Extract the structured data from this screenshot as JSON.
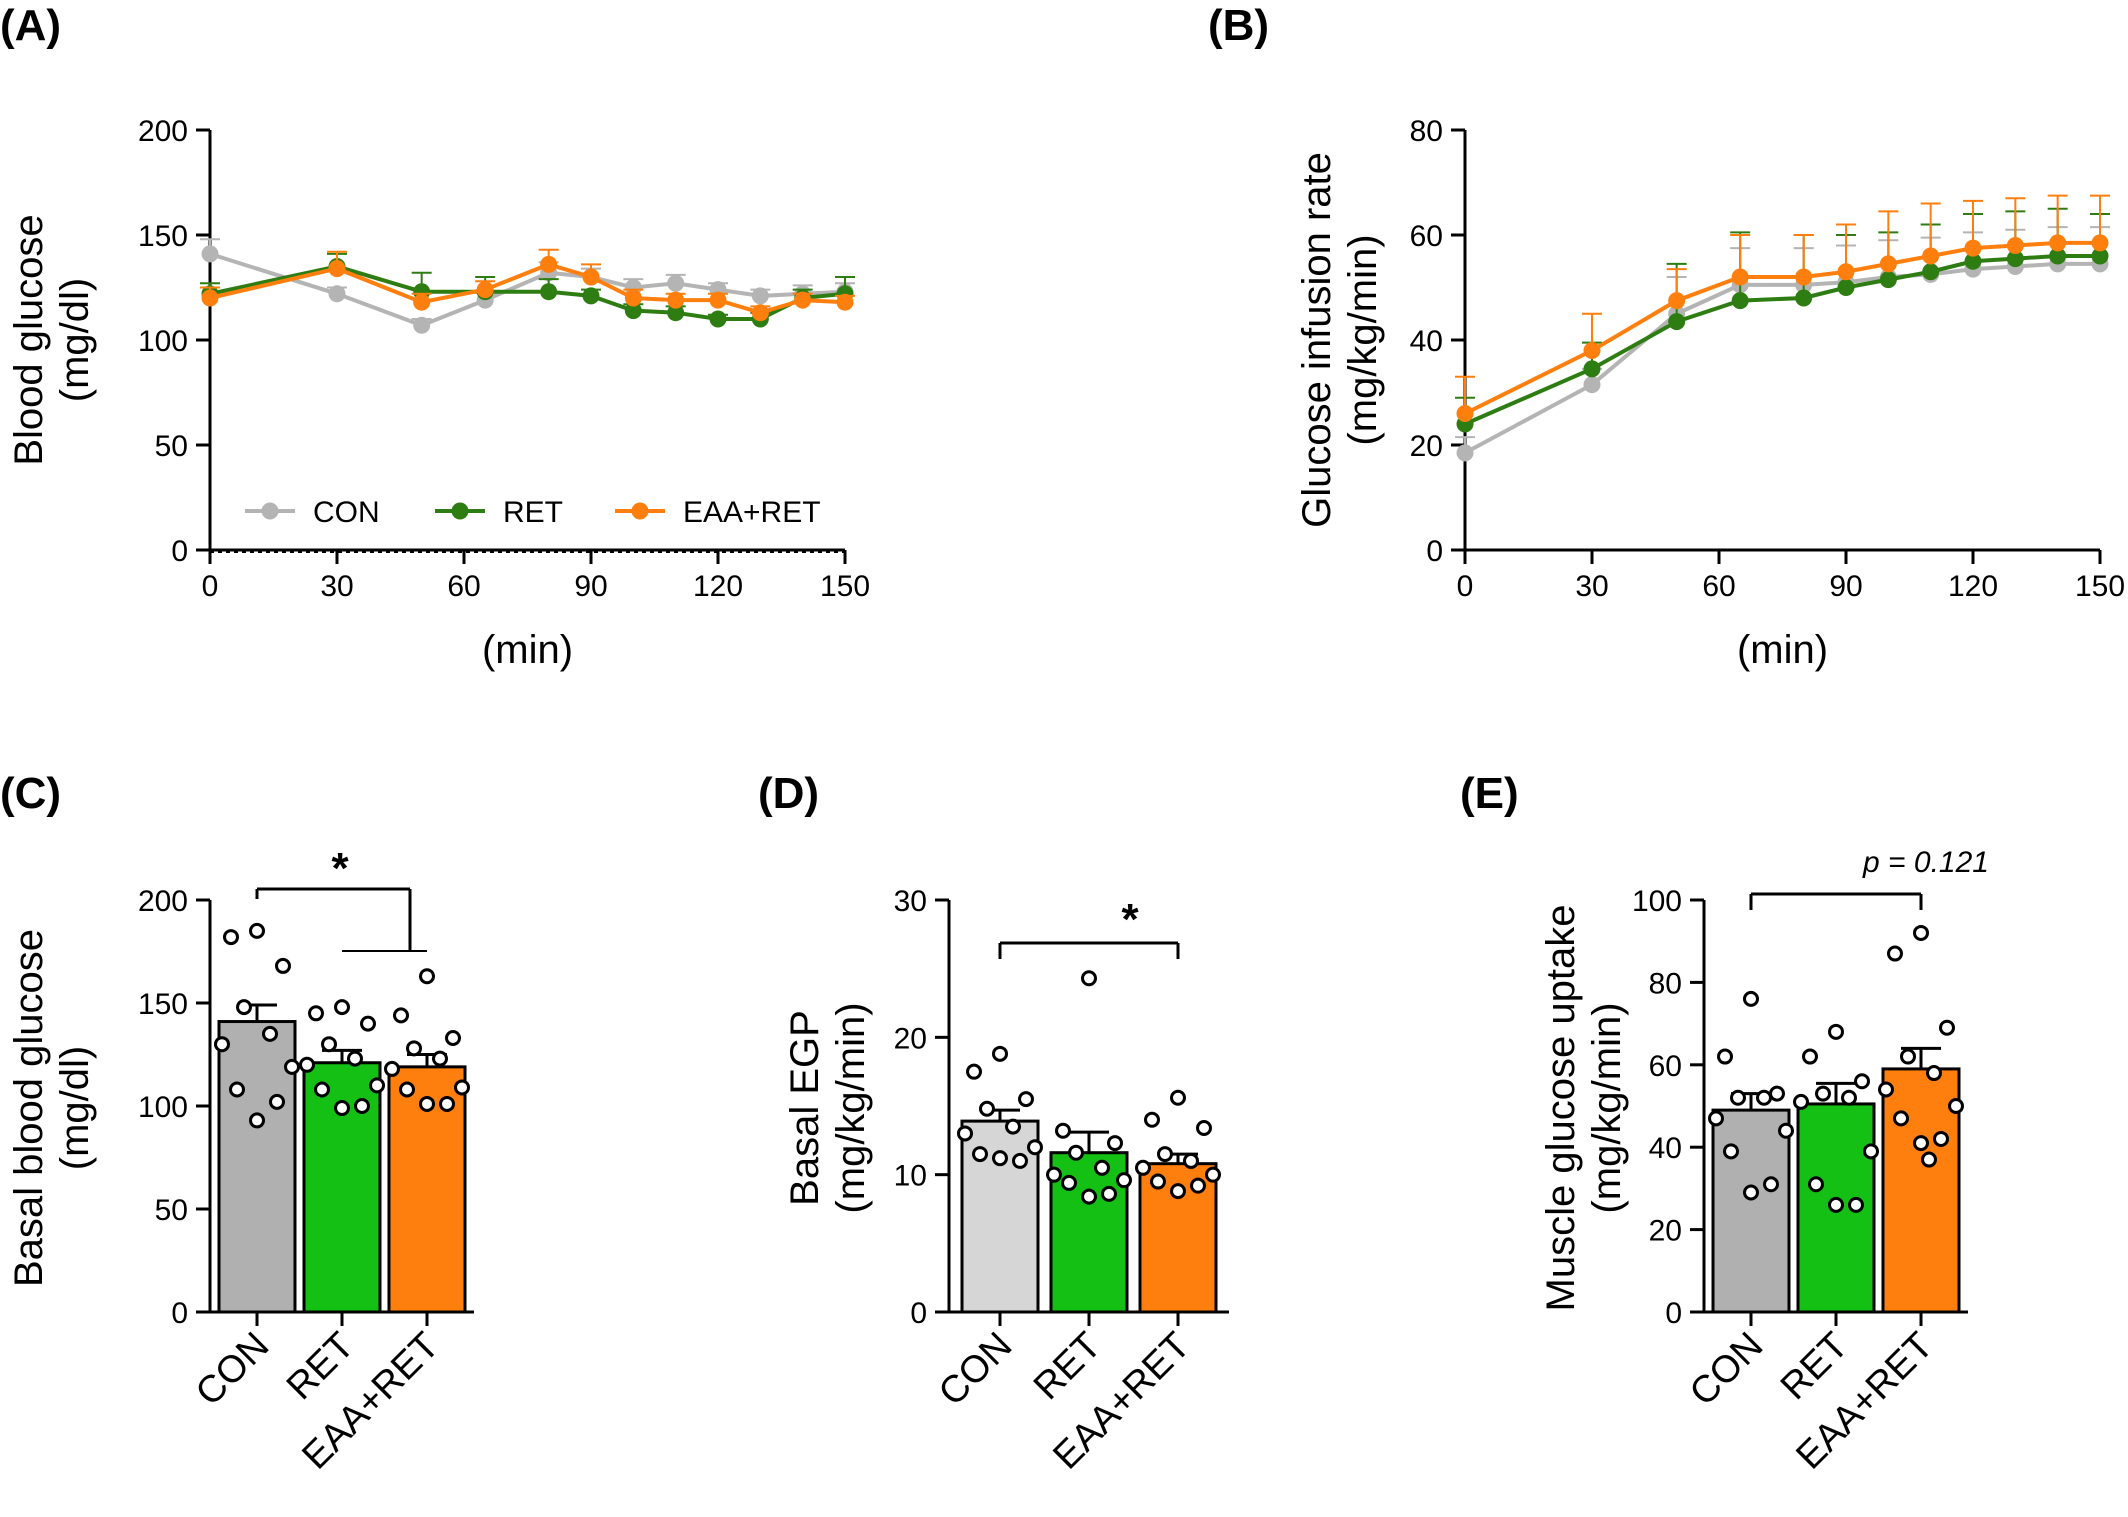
{
  "colors": {
    "con_line": "#b4b4b4",
    "ret_line": "#2e7d12",
    "eaa_line": "#ff7f0e",
    "con_bar_c": "#b0b0b0",
    "con_bar_d": "#d6d6d6",
    "ret_bar": "#13c013",
    "eaa_bar": "#ff7f0e"
  },
  "panels": {
    "A": "(A)",
    "B": "(B)",
    "C": "(C)",
    "D": "(D)",
    "E": "(E)"
  },
  "annotations": {
    "sig_c": "*",
    "sig_d": "*",
    "pval_e": "p = 0.121"
  },
  "chart_data": [
    {
      "id": "A",
      "type": "line",
      "xlabel": "(min)",
      "ylabel": [
        "Blood glucose",
        "(mg/dl)"
      ],
      "xlim": [
        0,
        150
      ],
      "ylim": [
        0,
        200
      ],
      "xticks": [
        "0",
        "30",
        "60",
        "90",
        "120",
        "150"
      ],
      "yticks": [
        "0",
        "50",
        "100",
        "150",
        "200"
      ],
      "legend": "bottom",
      "x": [
        0,
        30,
        50,
        65,
        80,
        90,
        100,
        110,
        120,
        130,
        140,
        150
      ],
      "series": [
        {
          "name": "CON",
          "color": "#b4b4b4",
          "values": [
            141,
            122,
            107,
            119,
            132,
            130,
            125,
            127,
            124,
            121,
            122,
            123
          ],
          "err": [
            7,
            3,
            3,
            4,
            5,
            4,
            4,
            4,
            3,
            3,
            4,
            4
          ]
        },
        {
          "name": "RET",
          "color": "#2e7d12",
          "values": [
            122,
            135,
            123,
            123,
            123,
            121,
            114,
            113,
            110,
            110,
            120,
            122
          ],
          "err": [
            5,
            6,
            9,
            7,
            6,
            3,
            3,
            3,
            2,
            3,
            4,
            8
          ]
        },
        {
          "name": "EAA+RET",
          "color": "#ff7f0e",
          "values": [
            120,
            134,
            118,
            124,
            136,
            130,
            120,
            119,
            119,
            113,
            119,
            118
          ],
          "err": [
            5,
            8,
            4,
            4,
            7,
            6,
            4,
            3,
            3,
            3,
            3,
            3
          ]
        }
      ]
    },
    {
      "id": "B",
      "type": "line",
      "xlabel": "(min)",
      "ylabel": [
        "Glucose infusion rate",
        "(mg/kg/min)"
      ],
      "xlim": [
        0,
        150
      ],
      "ylim": [
        0,
        80
      ],
      "xticks": [
        "0",
        "30",
        "60",
        "90",
        "120",
        "150"
      ],
      "yticks": [
        "0",
        "20",
        "40",
        "60",
        "80"
      ],
      "x": [
        0,
        30,
        50,
        65,
        80,
        90,
        100,
        110,
        120,
        130,
        140,
        150
      ],
      "series": [
        {
          "color": "#b4b4b4",
          "values": [
            18.5,
            31.5,
            45,
            50.5,
            50.5,
            51,
            52,
            52.5,
            53.5,
            54,
            54.5,
            54.5
          ],
          "err": [
            3,
            3,
            7,
            7,
            7,
            7,
            7,
            7,
            7,
            7,
            7,
            7
          ]
        },
        {
          "color": "#2e7d12",
          "values": [
            24,
            34.5,
            43.5,
            47.5,
            48,
            50,
            51.5,
            53,
            55,
            55.5,
            56,
            56
          ],
          "err": [
            5,
            5,
            11,
            13,
            12,
            10,
            9,
            9,
            9,
            9,
            9,
            8
          ]
        },
        {
          "color": "#ff7f0e",
          "values": [
            26,
            38,
            47.5,
            52,
            52,
            53,
            54.5,
            56,
            57.5,
            58,
            58.5,
            58.5
          ],
          "err": [
            7,
            7,
            6,
            8,
            8,
            9,
            10,
            10,
            9,
            9,
            9,
            9
          ]
        }
      ]
    },
    {
      "id": "C",
      "type": "bar",
      "categories": [
        "CON",
        "RET",
        "EAA+RET"
      ],
      "ylabel": [
        "Basal blood glucose",
        "(mg/dl)"
      ],
      "ylim": [
        0,
        200
      ],
      "yticks": [
        "0",
        "50",
        "100",
        "150",
        "200"
      ],
      "values": [
        141,
        121,
        119
      ],
      "err": [
        8,
        6,
        6
      ],
      "colors": [
        "#b0b0b0",
        "#13c013",
        "#ff7f0e"
      ],
      "points": [
        [
          185,
          182,
          168,
          148,
          135,
          130,
          119,
          108,
          102,
          93
        ],
        [
          148,
          145,
          140,
          130,
          123,
          120,
          110,
          108,
          100,
          99
        ],
        [
          163,
          144,
          133,
          128,
          123,
          118,
          109,
          108,
          101,
          101
        ]
      ]
    },
    {
      "id": "D",
      "type": "bar",
      "categories": [
        "CON",
        "RET",
        "EAA+RET"
      ],
      "ylabel": [
        "Basal EGP",
        "(mg/kg/min)"
      ],
      "ylim": [
        0,
        30
      ],
      "yticks": [
        "0",
        "10",
        "20",
        "30"
      ],
      "values": [
        13.9,
        11.6,
        10.8
      ],
      "err": [
        0.8,
        1.5,
        0.7
      ],
      "colors": [
        "#d6d6d6",
        "#13c013",
        "#ff7f0e"
      ],
      "points": [
        [
          18.8,
          17.5,
          15.5,
          14.8,
          13.5,
          13.0,
          12.0,
          11.5,
          11.0,
          11.2
        ],
        [
          24.3,
          13.2,
          12.3,
          11.6,
          10.5,
          10.0,
          9.6,
          9.4,
          8.6,
          8.4
        ],
        [
          15.6,
          14.0,
          13.4,
          11.5,
          11.0,
          10.5,
          10.0,
          9.5,
          9.2,
          8.8
        ]
      ]
    },
    {
      "id": "E",
      "type": "bar",
      "categories": [
        "CON",
        "RET",
        "EAA+RET"
      ],
      "ylabel": [
        "Muscle glucose uptake",
        "(mg/kg/min)"
      ],
      "ylim": [
        0,
        100
      ],
      "yticks": [
        "0",
        "20",
        "40",
        "60",
        "80",
        "100"
      ],
      "values": [
        49,
        50.5,
        59
      ],
      "err": [
        4,
        5,
        5
      ],
      "colors": [
        "#b0b0b0",
        "#13c013",
        "#ff7f0e"
      ],
      "points": [
        [
          76,
          62,
          53,
          52,
          52,
          47,
          44,
          39,
          31,
          29
        ],
        [
          68,
          62,
          56,
          53,
          52,
          51,
          39,
          31,
          26,
          26
        ],
        [
          92,
          87,
          69,
          62,
          58,
          54,
          50,
          47,
          42,
          41,
          37
        ]
      ]
    }
  ]
}
